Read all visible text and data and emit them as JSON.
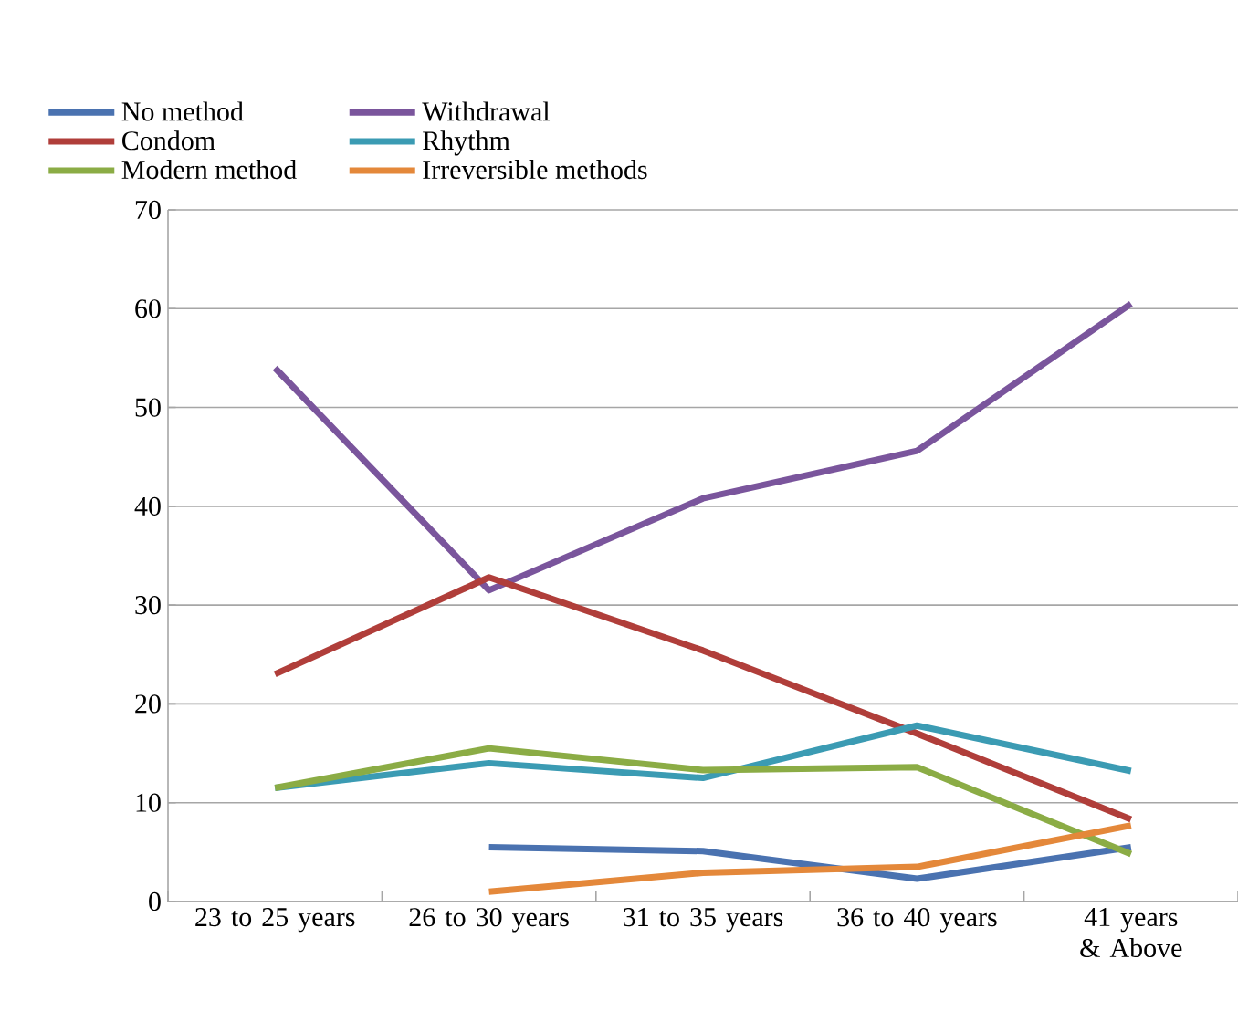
{
  "chart_data": {
    "type": "line",
    "categories": [
      "23 to 25 years",
      "26 to 30 years",
      "31 to 35 years",
      "36 to 40 years",
      "41 years & Above"
    ],
    "series": [
      {
        "name": "No method",
        "color": "#4a72b0",
        "values": [
          null,
          5.5,
          5.1,
          2.3,
          5.5
        ]
      },
      {
        "name": "Withdrawal",
        "color": "#7a559c",
        "values": [
          54,
          31.5,
          40.8,
          45.6,
          60.5
        ]
      },
      {
        "name": "Condom",
        "color": "#b03e3a",
        "values": [
          23,
          32.8,
          25.4,
          17,
          8.3
        ]
      },
      {
        "name": "Rhythm",
        "color": "#3b9bb3",
        "values": [
          11.5,
          14,
          12.5,
          17.8,
          13.2
        ]
      },
      {
        "name": "Modern method",
        "color": "#8bac45",
        "values": [
          11.5,
          15.5,
          13.3,
          13.6,
          4.8
        ]
      },
      {
        "name": "Irreversible methods",
        "color": "#e4883a",
        "values": [
          null,
          1,
          2.9,
          3.5,
          7.7
        ]
      }
    ],
    "ylim": [
      0,
      70
    ],
    "yticks": [
      0,
      10,
      20,
      30,
      40,
      50,
      60,
      70
    ],
    "grid": "y",
    "legend": "top",
    "marker": "none",
    "line_style": "solid"
  }
}
